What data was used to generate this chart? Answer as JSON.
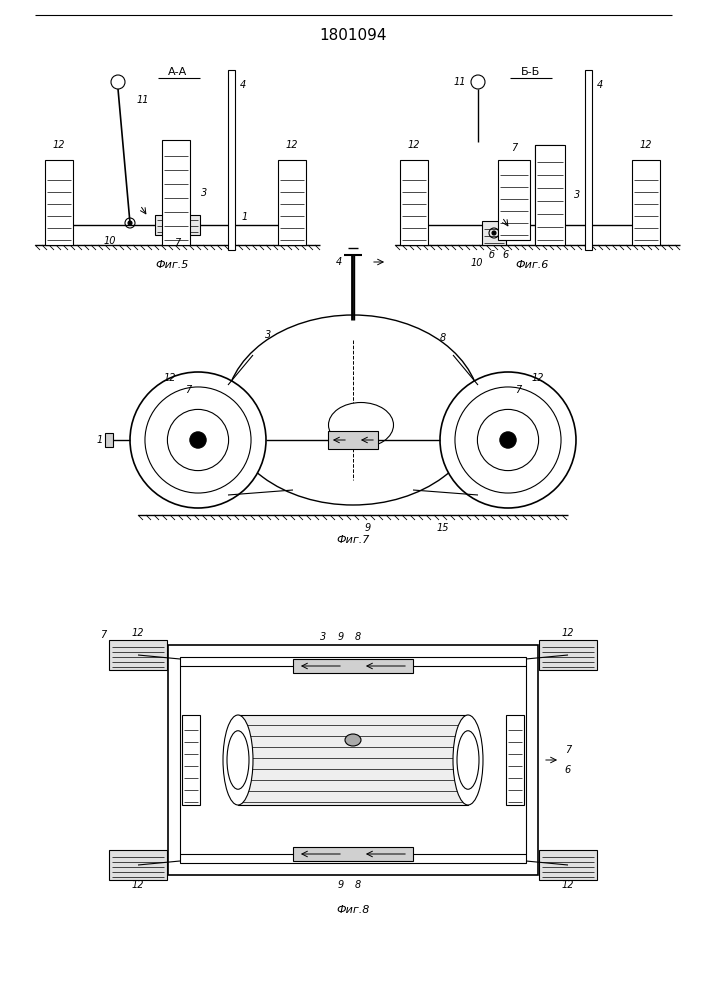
{
  "title": "1801094",
  "title_fontsize": 11,
  "bg_color": "#ffffff",
  "line_color": "#000000",
  "fig5_caption": "Фиг.5",
  "fig6_caption": "Фиг.6",
  "fig7_caption": "Фиг.7",
  "fig8_caption": "Фиг.8"
}
